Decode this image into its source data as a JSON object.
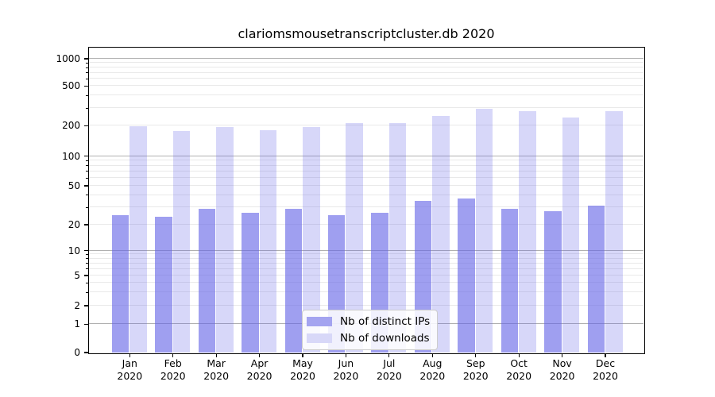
{
  "title": "clariomsmousetranscriptcluster.db 2020",
  "chart_data": {
    "type": "bar",
    "title": "clariomsmousetranscriptcluster.db 2020",
    "categories": [
      "Jan 2020",
      "Feb 2020",
      "Mar 2020",
      "Apr 2020",
      "May 2020",
      "Jun 2020",
      "Jul 2020",
      "Aug 2020",
      "Sep 2020",
      "Oct 2020",
      "Nov 2020",
      "Dec 2020"
    ],
    "series": [
      {
        "name": "Nb of distinct IPs",
        "solid_color": "#a4a4f0",
        "fill_rgba": "rgba(100,100,230,0.62)",
        "values": [
          25,
          24,
          29,
          26,
          29,
          25,
          26,
          35,
          37,
          29,
          27,
          31
        ]
      },
      {
        "name": "Nb of downloads",
        "solid_color": "#d8d8f8",
        "fill_rgba": "rgba(100,100,230,0.26)",
        "values": [
          195,
          174,
          193,
          180,
          192,
          210,
          211,
          250,
          291,
          276,
          238,
          276
        ]
      }
    ],
    "xlabel": "",
    "ylabel": "",
    "yscale": "symlog",
    "y_ticks": [
      0,
      1,
      2,
      5,
      10,
      20,
      50,
      100,
      200,
      500,
      1000
    ],
    "y_minor_ticks": [
      3,
      4,
      6,
      7,
      8,
      9,
      30,
      40,
      60,
      70,
      80,
      90,
      300,
      400,
      600,
      700,
      800,
      900
    ],
    "grid": true,
    "legend_position": "lower center",
    "colors": {
      "major_grid": "#b0b0b0",
      "minor_grid": "#e9e9e9",
      "axis": "#000000",
      "background": "#ffffff",
      "text": "#000000"
    }
  }
}
